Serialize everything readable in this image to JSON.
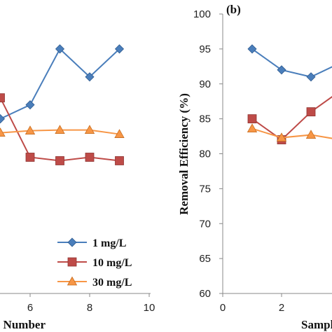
{
  "chart_data": [
    {
      "type": "line",
      "panel": "",
      "title": "",
      "xlabel": "Sample Number",
      "ylabel": "",
      "xlim": [
        0,
        10
      ],
      "x_ticks": [
        "6",
        "8",
        "10"
      ],
      "legend_position": "bottom-right",
      "series": [
        {
          "name": "1 mg/L",
          "color": "#4a7ebb",
          "marker": "diamond",
          "x": [
            5,
            6,
            7,
            8,
            9
          ],
          "y": [
            85,
            87,
            95,
            91,
            95
          ]
        },
        {
          "name": "10 mg/L",
          "color": "#be4b48",
          "marker": "square",
          "x": [
            5,
            6,
            7,
            8,
            9
          ],
          "y": [
            88,
            79.5,
            79,
            79.5,
            79
          ]
        },
        {
          "name": "30 mg/L",
          "color": "#f79646",
          "marker": "triangle",
          "x": [
            5,
            6,
            7,
            8,
            9
          ],
          "y": [
            83,
            83.3,
            83.4,
            83.4,
            82.8
          ]
        }
      ]
    },
    {
      "type": "line",
      "panel": "(b)",
      "title": "",
      "xlabel": "Sample Number",
      "ylabel": "Removal Efficiency (%)",
      "xlim": [
        0,
        10
      ],
      "ylim": [
        60,
        100
      ],
      "y_ticks": [
        "60",
        "65",
        "70",
        "75",
        "80",
        "85",
        "90",
        "95",
        "100"
      ],
      "x_ticks": [
        "0",
        "2"
      ],
      "series": [
        {
          "name": "1 mg/L",
          "color": "#4a7ebb",
          "marker": "diamond",
          "x": [
            1,
            2,
            3,
            4
          ],
          "y": [
            95,
            92,
            91,
            93
          ]
        },
        {
          "name": "10 mg/L",
          "color": "#be4b48",
          "marker": "square",
          "x": [
            1,
            2,
            3,
            4
          ],
          "y": [
            85,
            82,
            86,
            89
          ]
        },
        {
          "name": "30 mg/L",
          "color": "#f79646",
          "marker": "triangle",
          "x": [
            1,
            2,
            3,
            4
          ],
          "y": [
            83.6,
            82.3,
            82.7,
            82
          ]
        }
      ]
    }
  ]
}
